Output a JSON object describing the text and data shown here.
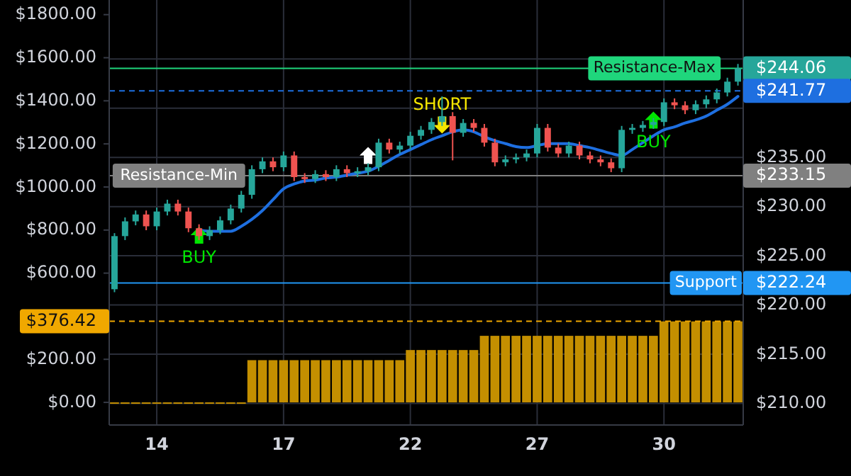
{
  "chart_data": {
    "type": "candlestick",
    "categories": [
      null,
      null,
      null,
      null,
      "14",
      null,
      null,
      null,
      null,
      null,
      null,
      null,
      null,
      null,
      null,
      null,
      "17",
      null,
      null,
      null,
      null,
      null,
      null,
      null,
      null,
      null,
      null,
      null,
      "22",
      null,
      null,
      null,
      null,
      null,
      null,
      null,
      null,
      null,
      null,
      null,
      "27",
      null,
      null,
      null,
      null,
      null,
      null,
      null,
      null,
      null,
      null,
      null,
      "30",
      null,
      null,
      null,
      null,
      null,
      null,
      null
    ],
    "ohlc": [
      [
        221.6,
        227.3,
        221.3,
        227.0
      ],
      [
        227.0,
        228.9,
        226.6,
        228.5
      ],
      [
        228.5,
        229.6,
        228.1,
        229.2
      ],
      [
        229.2,
        229.6,
        227.6,
        228.0
      ],
      [
        228.0,
        229.9,
        227.6,
        229.5
      ],
      [
        229.5,
        230.7,
        229.1,
        230.3
      ],
      [
        230.3,
        230.7,
        229.1,
        229.5
      ],
      [
        229.5,
        229.9,
        227.4,
        227.8
      ],
      [
        227.8,
        228.2,
        226.6,
        227.0
      ],
      [
        227.0,
        228.0,
        226.6,
        227.6
      ],
      [
        227.6,
        229.0,
        227.2,
        228.6
      ],
      [
        228.6,
        230.2,
        228.2,
        229.8
      ],
      [
        229.8,
        231.6,
        229.4,
        231.2
      ],
      [
        231.2,
        234.2,
        230.8,
        233.8
      ],
      [
        233.8,
        235.0,
        233.4,
        234.6
      ],
      [
        234.6,
        235.0,
        233.6,
        234.0
      ],
      [
        234.0,
        235.6,
        233.6,
        235.2
      ],
      [
        235.2,
        235.6,
        232.6,
        233.0
      ],
      [
        233.0,
        233.4,
        232.4,
        232.8
      ],
      [
        232.8,
        233.7,
        232.4,
        233.3
      ],
      [
        233.3,
        233.7,
        232.6,
        233.0
      ],
      [
        233.0,
        234.2,
        232.6,
        233.8
      ],
      [
        233.8,
        234.2,
        233.0,
        233.4
      ],
      [
        233.4,
        234.0,
        233.0,
        233.6
      ],
      [
        233.6,
        234.4,
        233.2,
        234.0
      ],
      [
        234.0,
        236.9,
        233.6,
        236.5
      ],
      [
        236.5,
        236.9,
        235.4,
        235.8
      ],
      [
        235.8,
        236.6,
        235.4,
        236.2
      ],
      [
        236.2,
        237.6,
        235.8,
        237.2
      ],
      [
        237.2,
        238.2,
        236.8,
        237.8
      ],
      [
        237.8,
        239.0,
        237.4,
        238.6
      ],
      [
        238.6,
        241.2,
        238.2,
        239.2
      ],
      [
        239.2,
        239.6,
        234.7,
        237.5
      ],
      [
        237.5,
        238.9,
        237.1,
        238.5
      ],
      [
        238.5,
        238.9,
        237.6,
        238.0
      ],
      [
        238.0,
        238.4,
        236.1,
        236.5
      ],
      [
        236.5,
        236.9,
        234.1,
        234.5
      ],
      [
        234.5,
        235.2,
        234.1,
        234.8
      ],
      [
        234.8,
        235.4,
        234.4,
        235.0
      ],
      [
        235.0,
        235.8,
        234.6,
        235.4
      ],
      [
        235.4,
        238.4,
        235.0,
        238.0
      ],
      [
        238.0,
        238.4,
        235.6,
        236.0
      ],
      [
        236.0,
        236.4,
        235.0,
        235.4
      ],
      [
        235.4,
        236.6,
        235.0,
        236.2
      ],
      [
        236.2,
        236.6,
        234.8,
        235.2
      ],
      [
        235.2,
        235.6,
        234.4,
        234.8
      ],
      [
        234.8,
        235.2,
        234.1,
        234.5
      ],
      [
        234.5,
        234.9,
        233.5,
        233.9
      ],
      [
        233.9,
        238.2,
        233.5,
        237.8
      ],
      [
        237.8,
        238.4,
        237.4,
        238.0
      ],
      [
        238.0,
        238.7,
        237.6,
        238.3
      ],
      [
        238.3,
        239.0,
        237.9,
        238.6
      ],
      [
        238.6,
        241.0,
        238.2,
        240.6
      ],
      [
        240.6,
        241.0,
        239.9,
        240.3
      ],
      [
        240.3,
        240.7,
        239.4,
        239.8
      ],
      [
        239.8,
        240.8,
        239.4,
        240.4
      ],
      [
        240.4,
        241.3,
        240.0,
        240.9
      ],
      [
        240.9,
        242.0,
        240.5,
        241.6
      ],
      [
        241.6,
        243.1,
        241.2,
        242.7
      ],
      [
        242.7,
        244.5,
        242.3,
        244.06
      ]
    ],
    "series": [
      {
        "type": "line",
        "color": "#1e6fe0",
        "values": [
          null,
          null,
          null,
          null,
          null,
          null,
          null,
          null,
          227.6,
          227.5,
          227.5,
          227.5,
          228.0,
          228.7,
          229.6,
          230.7,
          231.8,
          232.3,
          232.6,
          232.7,
          232.9,
          233.0,
          233.2,
          233.4,
          233.6,
          234.1,
          234.7,
          235.3,
          235.8,
          236.3,
          236.8,
          237.2,
          237.6,
          237.8,
          237.6,
          237.1,
          236.7,
          236.4,
          236.1,
          236.0,
          236.2,
          236.4,
          236.4,
          236.4,
          236.2,
          236.0,
          235.7,
          235.4,
          235.2,
          235.8,
          236.5,
          237.2,
          237.8,
          238.1,
          238.5,
          238.8,
          239.2,
          239.8,
          240.4,
          241.2
        ]
      },
      {
        "type": "bar",
        "axis": "y2",
        "color": "#c48f00",
        "values": [
          0,
          0,
          0,
          0,
          0,
          0,
          0,
          0,
          0,
          0,
          0,
          0,
          0,
          196,
          196,
          196,
          196,
          196,
          196,
          196,
          196,
          196,
          196,
          196,
          196,
          196,
          196,
          196,
          243,
          243,
          243,
          243,
          243,
          243,
          243,
          309,
          309,
          309,
          309,
          309,
          309,
          309,
          309,
          309,
          309,
          309,
          309,
          309,
          309,
          309,
          309,
          309,
          376,
          376,
          376,
          376,
          376,
          376,
          376,
          376
        ]
      },
      {
        "type": "scatter",
        "name": "BUY",
        "color": "#00e600",
        "marker": "triangle",
        "values": [
          null,
          null,
          null,
          null,
          null,
          null,
          null,
          null,
          227.1,
          null,
          null,
          null,
          null,
          null,
          null,
          null,
          null,
          null,
          null,
          null,
          null,
          null,
          null,
          null,
          null,
          null,
          null,
          null,
          null,
          null,
          null,
          null,
          null,
          null,
          null,
          null,
          null,
          null,
          null,
          null,
          null,
          null,
          null,
          null,
          null,
          null,
          null,
          null,
          null,
          null,
          null,
          238.8,
          null,
          null,
          null,
          null,
          null,
          null,
          null,
          null
        ]
      },
      {
        "type": "scatter",
        "name": "SHORT",
        "color": "#f5e600",
        "marker": "triangle-down",
        "values": [
          null,
          null,
          null,
          null,
          null,
          null,
          null,
          null,
          null,
          null,
          null,
          null,
          null,
          null,
          null,
          null,
          null,
          null,
          null,
          null,
          null,
          null,
          null,
          null,
          null,
          null,
          null,
          null,
          null,
          null,
          null,
          238.3,
          null,
          null,
          null,
          null,
          null,
          null,
          null,
          null,
          null,
          null,
          null,
          null,
          null,
          null,
          null,
          null,
          null,
          null,
          null,
          null,
          null,
          null,
          null,
          null,
          null,
          null,
          null,
          null
        ]
      },
      {
        "type": "scatter",
        "color": "#ffffff",
        "marker": "triangle",
        "values": [
          null,
          null,
          null,
          null,
          null,
          null,
          null,
          null,
          null,
          null,
          null,
          null,
          null,
          null,
          null,
          null,
          null,
          null,
          null,
          null,
          null,
          null,
          null,
          null,
          235.2,
          null,
          null,
          null,
          null,
          null,
          null,
          null,
          null,
          null,
          null,
          null,
          null,
          null,
          null,
          null,
          null,
          null,
          null,
          null,
          null,
          null,
          null,
          null,
          null,
          null,
          null,
          null,
          null,
          null,
          null,
          null,
          null,
          null,
          null,
          null
        ]
      }
    ],
    "ylim": [
      207.8,
      251.0
    ],
    "yticks": [
      {
        "value": 210,
        "label": "$210.00"
      },
      {
        "value": 215,
        "label": "$215.00"
      },
      {
        "value": 220,
        "label": "$220.00"
      },
      {
        "value": 225,
        "label": "$225.00"
      },
      {
        "value": 230,
        "label": "$230.00"
      },
      {
        "value": 235,
        "label": "$235.00"
      },
      {
        "value": 240,
        "label": null
      },
      {
        "value": 245,
        "label": null
      },
      {
        "value": 244.06,
        "label": "$244.06"
      },
      {
        "value": 241.77,
        "label": "$241.77"
      },
      {
        "value": 233.15,
        "label": "$233.15"
      },
      {
        "value": 222.24,
        "label": "$222.24"
      }
    ],
    "y2lim": [
      -105,
      1868
    ],
    "y2ticks": [
      {
        "value": 0,
        "label": "$0.00"
      },
      {
        "value": 200,
        "label": "$200.00"
      },
      {
        "value": 600,
        "label": "$600.00"
      },
      {
        "value": 800,
        "label": "$800.00"
      },
      {
        "value": 1000,
        "label": "$1000.00"
      },
      {
        "value": 1200,
        "label": "$1200.00"
      },
      {
        "value": 1400,
        "label": "$1400.00"
      },
      {
        "value": 1600,
        "label": "$1600.00"
      },
      {
        "value": 1800,
        "label": "$1800.00"
      },
      {
        "value": 376.42,
        "label": "$376.42"
      }
    ],
    "ref_lines": [
      {
        "axis": "y",
        "value": 244.06,
        "label": "Resistance-Max",
        "color": "#1fd67c"
      },
      {
        "axis": "y",
        "value": 241.77,
        "color": "#1e6fe0",
        "line_style": "dashed"
      },
      {
        "axis": "y",
        "value": 233.15,
        "label": "Resistance-Min",
        "color": "#808080"
      },
      {
        "axis": "y",
        "value": 222.24,
        "label": "Support",
        "color": "#2196f3"
      },
      {
        "axis": "y2",
        "value": 376.42,
        "color": "#f0a800",
        "line_style": "dashed"
      }
    ],
    "grid": true
  }
}
